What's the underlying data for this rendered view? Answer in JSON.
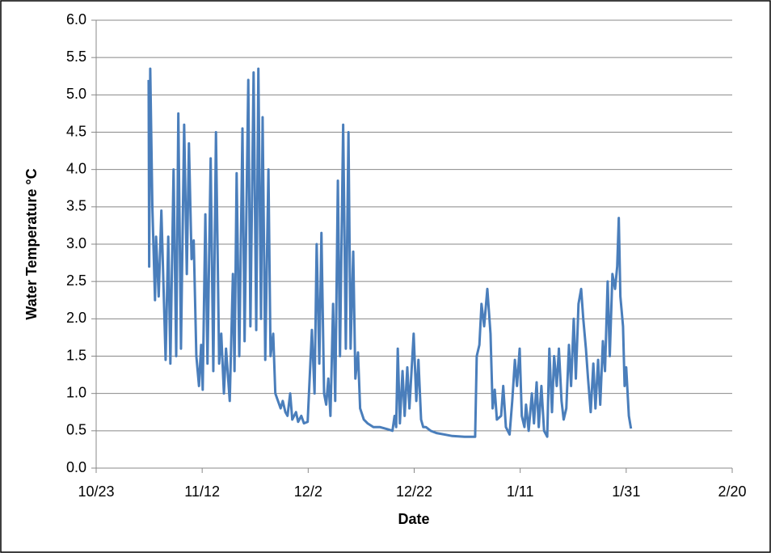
{
  "chart_data": {
    "type": "line",
    "x_label": "Date",
    "y_label": "Water Temperature °C",
    "x": [
      9.9,
      10.0,
      10.2,
      10.6,
      11.1,
      11.3,
      11.8,
      12.3,
      13.1,
      13.6,
      14.0,
      14.6,
      15.1,
      15.5,
      16.0,
      16.6,
      17.1,
      17.5,
      18.0,
      18.4,
      18.9,
      19.4,
      19.8,
      20.1,
      20.6,
      21.0,
      21.6,
      22.1,
      22.6,
      23.2,
      23.6,
      24.1,
      24.5,
      25.2,
      25.8,
      26.1,
      26.5,
      27.0,
      27.6,
      28.0,
      28.7,
      29.1,
      29.7,
      30.2,
      30.6,
      31.1,
      31.4,
      31.9,
      32.5,
      32.9,
      33.4,
      33.8,
      34.3,
      34.8,
      35.2,
      35.7,
      36.1,
      36.6,
      37.0,
      37.7,
      38.1,
      38.7,
      39.2,
      39.9,
      40.7,
      41.2,
      41.6,
      42.1,
      42.5,
      43.0,
      43.4,
      43.8,
      44.2,
      44.7,
      45.1,
      45.6,
      46.0,
      46.6,
      47.1,
      47.6,
      48.0,
      48.5,
      48.9,
      49.4,
      49.8,
      50.5,
      51.2,
      52.3,
      53.5,
      55.0,
      55.9,
      56.3,
      56.6,
      56.9,
      57.3,
      57.8,
      58.2,
      58.7,
      59.1,
      59.9,
      60.4,
      60.8,
      61.3,
      61.7,
      62.2,
      63.1,
      64.2,
      65.7,
      67.2,
      69.5,
      71.5,
      71.8,
      72.3,
      72.7,
      73.2,
      73.8,
      74.4,
      74.8,
      75.2,
      75.6,
      76.4,
      76.8,
      77.3,
      78.0,
      78.5,
      79.0,
      79.4,
      79.9,
      80.3,
      80.8,
      81.1,
      81.6,
      82.2,
      82.6,
      83.1,
      83.5,
      84.0,
      84.5,
      85.1,
      85.5,
      86.0,
      86.4,
      86.9,
      87.3,
      87.8,
      88.2,
      88.7,
      89.2,
      89.6,
      90.1,
      90.5,
      91.0,
      91.5,
      91.9,
      92.4,
      92.8,
      93.3,
      93.8,
      94.2,
      94.7,
      95.1,
      95.6,
      96.0,
      96.5,
      96.9,
      97.4,
      97.9,
      98.3,
      98.6,
      98.9,
      99.4,
      99.7,
      100.0,
      100.5,
      100.9
    ],
    "series": [
      {
        "color": "#4a7ebb",
        "values": [
          5.2,
          2.7,
          5.35,
          3.5,
          2.25,
          3.1,
          2.3,
          3.45,
          1.45,
          3.1,
          1.4,
          4.0,
          1.5,
          4.75,
          1.6,
          4.6,
          2.6,
          4.35,
          2.8,
          3.05,
          1.5,
          1.1,
          1.65,
          1.05,
          3.4,
          1.4,
          4.15,
          1.3,
          4.5,
          1.4,
          1.8,
          1.0,
          1.6,
          0.9,
          2.6,
          1.3,
          3.95,
          1.5,
          4.55,
          1.7,
          5.2,
          1.9,
          5.3,
          1.85,
          5.35,
          2.0,
          4.7,
          1.45,
          4.0,
          1.5,
          1.8,
          1.0,
          0.9,
          0.8,
          0.9,
          0.75,
          0.7,
          1.0,
          0.65,
          0.75,
          0.62,
          0.7,
          0.6,
          0.62,
          1.85,
          1.0,
          3.0,
          1.4,
          3.15,
          1.0,
          0.85,
          1.2,
          0.7,
          2.2,
          0.9,
          3.85,
          1.5,
          4.6,
          1.6,
          4.5,
          1.6,
          2.9,
          1.2,
          1.55,
          0.8,
          0.65,
          0.6,
          0.55,
          0.55,
          0.52,
          0.5,
          0.7,
          0.55,
          1.6,
          0.6,
          1.3,
          0.7,
          1.35,
          0.8,
          1.8,
          0.9,
          1.45,
          0.65,
          0.55,
          0.55,
          0.5,
          0.47,
          0.45,
          0.43,
          0.42,
          0.42,
          1.5,
          1.65,
          2.2,
          1.9,
          2.4,
          1.8,
          0.8,
          1.05,
          0.65,
          0.7,
          1.1,
          0.55,
          0.45,
          0.9,
          1.45,
          1.1,
          1.6,
          0.7,
          0.55,
          0.85,
          0.5,
          1.0,
          0.6,
          1.15,
          0.55,
          1.1,
          0.5,
          0.42,
          1.6,
          0.75,
          1.5,
          1.1,
          1.6,
          0.9,
          0.65,
          0.8,
          1.65,
          1.1,
          2.0,
          1.2,
          2.2,
          2.4,
          2.0,
          1.6,
          1.2,
          0.75,
          1.4,
          0.8,
          1.45,
          0.85,
          1.7,
          1.3,
          2.5,
          1.5,
          2.6,
          2.4,
          2.7,
          3.35,
          2.3,
          1.9,
          1.1,
          1.35,
          0.7,
          0.53
        ]
      }
    ],
    "xlim": [
      0,
      120
    ],
    "xticks": [
      {
        "value": 0,
        "label": "10/23"
      },
      {
        "value": 20,
        "label": "11/12"
      },
      {
        "value": 40,
        "label": "12/2"
      },
      {
        "value": 60,
        "label": "12/22"
      },
      {
        "value": 80,
        "label": "1/11"
      },
      {
        "value": 100,
        "label": "1/31"
      },
      {
        "value": 120,
        "label": "2/20"
      }
    ],
    "ylim": [
      0,
      6
    ],
    "yticks": [
      {
        "value": 0,
        "label": "0.0"
      },
      {
        "value": 0.5,
        "label": "0.5"
      },
      {
        "value": 1,
        "label": "1.0"
      },
      {
        "value": 1.5,
        "label": "1.5"
      },
      {
        "value": 2,
        "label": "2.0"
      },
      {
        "value": 2.5,
        "label": "2.5"
      },
      {
        "value": 3,
        "label": "3.0"
      },
      {
        "value": 3.5,
        "label": "3.5"
      },
      {
        "value": 4,
        "label": "4.0"
      },
      {
        "value": 4.5,
        "label": "4.5"
      },
      {
        "value": 5,
        "label": "5.0"
      },
      {
        "value": 5.5,
        "label": "5.5"
      },
      {
        "value": 6,
        "label": "6.0"
      }
    ],
    "grid": true
  }
}
